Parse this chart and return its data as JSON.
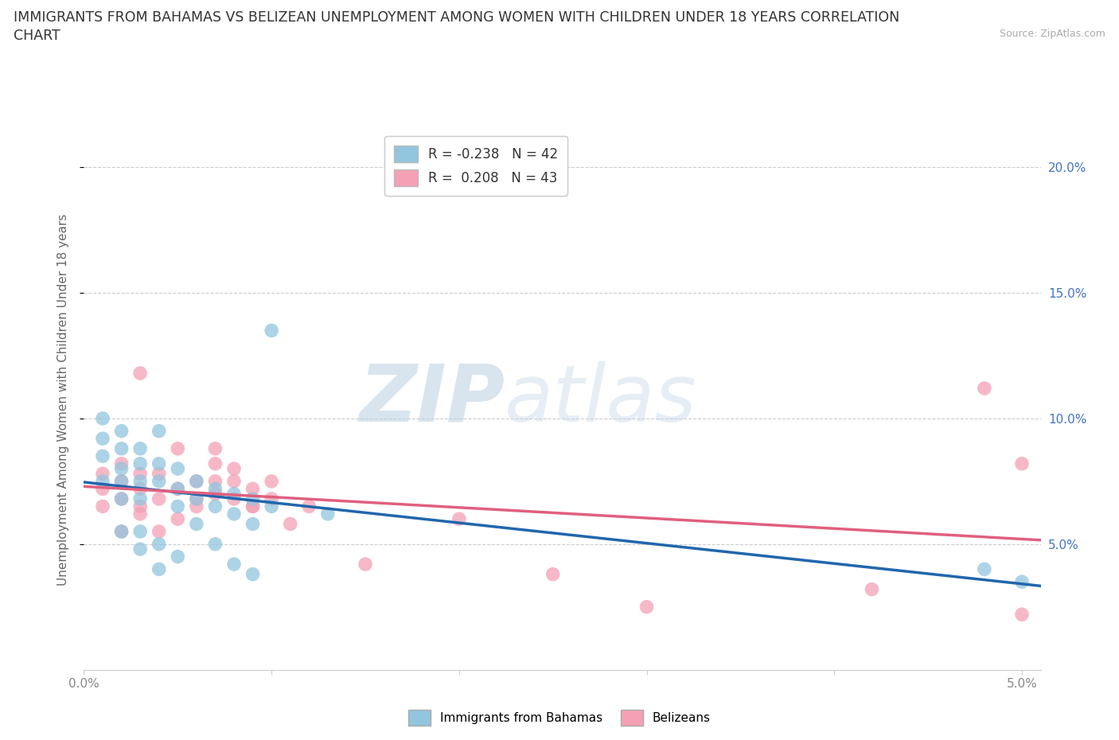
{
  "title_line1": "IMMIGRANTS FROM BAHAMAS VS BELIZEAN UNEMPLOYMENT AMONG WOMEN WITH CHILDREN UNDER 18 YEARS CORRELATION",
  "title_line2": "CHART",
  "source": "Source: ZipAtlas.com",
  "ylabel": "Unemployment Among Women with Children Under 18 years",
  "R_bahamas": -0.238,
  "N_bahamas": 42,
  "R_belizean": 0.208,
  "N_belizean": 43,
  "color_bahamas": "#92c5de",
  "color_belizean": "#f4a0b5",
  "line_color_bahamas": "#2166ac",
  "line_color_belizean": "#e0607e",
  "legend_label_bahamas": "Immigrants from Bahamas",
  "legend_label_belizean": "Belizeans",
  "watermark_zip": "ZIP",
  "watermark_atlas": "atlas",
  "xlim": [
    0.0,
    0.051
  ],
  "ylim": [
    0.0,
    0.215
  ],
  "right_tick_color": "#4472c4",
  "background_color": "#ffffff",
  "bahamas_x": [
    0.001,
    0.001,
    0.001,
    0.001,
    0.002,
    0.002,
    0.002,
    0.002,
    0.002,
    0.003,
    0.003,
    0.003,
    0.003,
    0.004,
    0.004,
    0.004,
    0.005,
    0.005,
    0.005,
    0.006,
    0.006,
    0.007,
    0.007,
    0.008,
    0.008,
    0.009,
    0.009,
    0.01,
    0.003,
    0.004,
    0.005,
    0.006,
    0.007,
    0.008,
    0.009,
    0.01,
    0.013,
    0.002,
    0.003,
    0.004,
    0.048,
    0.05
  ],
  "bahamas_y": [
    0.085,
    0.092,
    0.1,
    0.075,
    0.095,
    0.088,
    0.08,
    0.075,
    0.068,
    0.082,
    0.075,
    0.068,
    0.088,
    0.095,
    0.082,
    0.075,
    0.08,
    0.072,
    0.065,
    0.075,
    0.068,
    0.072,
    0.065,
    0.07,
    0.062,
    0.068,
    0.058,
    0.065,
    0.055,
    0.05,
    0.045,
    0.058,
    0.05,
    0.042,
    0.038,
    0.135,
    0.062,
    0.055,
    0.048,
    0.04,
    0.04,
    0.035
  ],
  "belizean_x": [
    0.001,
    0.001,
    0.001,
    0.002,
    0.002,
    0.002,
    0.003,
    0.003,
    0.003,
    0.003,
    0.004,
    0.004,
    0.005,
    0.005,
    0.006,
    0.006,
    0.007,
    0.007,
    0.007,
    0.008,
    0.008,
    0.009,
    0.009,
    0.01,
    0.01,
    0.011,
    0.012,
    0.002,
    0.003,
    0.004,
    0.005,
    0.006,
    0.007,
    0.008,
    0.009,
    0.015,
    0.02,
    0.025,
    0.03,
    0.042,
    0.048,
    0.05,
    0.05
  ],
  "belizean_y": [
    0.072,
    0.078,
    0.065,
    0.075,
    0.068,
    0.082,
    0.065,
    0.072,
    0.078,
    0.118,
    0.068,
    0.078,
    0.072,
    0.088,
    0.065,
    0.075,
    0.07,
    0.082,
    0.088,
    0.068,
    0.075,
    0.072,
    0.065,
    0.075,
    0.068,
    0.058,
    0.065,
    0.055,
    0.062,
    0.055,
    0.06,
    0.068,
    0.075,
    0.08,
    0.065,
    0.042,
    0.06,
    0.038,
    0.025,
    0.032,
    0.112,
    0.082,
    0.022
  ]
}
